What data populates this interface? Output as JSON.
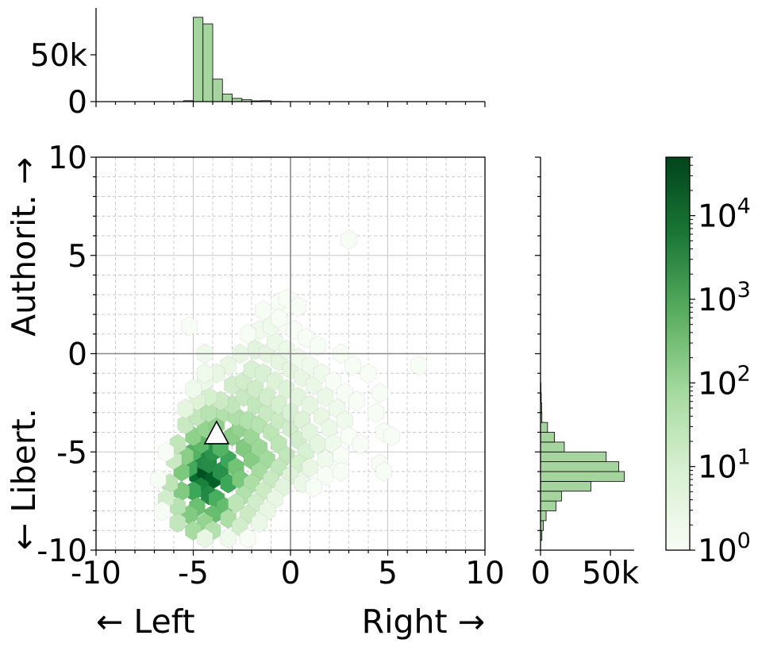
{
  "chart_data": [
    {
      "type": "heatmap",
      "subtype": "hexbin",
      "xlabel_left": "← Left",
      "xlabel_right": "Right →",
      "ylabel_bottom": "← Libert.",
      "ylabel_top": "Authorit. →",
      "xlim": [
        -10,
        10
      ],
      "ylim": [
        -10,
        10
      ],
      "x_ticks": [
        -10,
        -5,
        0,
        5,
        10
      ],
      "y_ticks": [
        -10,
        -5,
        0,
        5,
        10
      ],
      "x_tick_labels": [
        "-10",
        "-5",
        "0",
        "5",
        "10"
      ],
      "y_tick_labels": [
        "-10",
        "-5",
        "0",
        "5",
        "10"
      ],
      "grid": true,
      "color_scale": "log",
      "colormap": "Greens",
      "colorbar_min": 1,
      "colorbar_max": 50000,
      "colorbar_ticks": [
        1,
        10,
        100,
        1000,
        10000
      ],
      "colorbar_tick_labels": [
        {
          "base": "10",
          "exp": "0"
        },
        {
          "base": "10",
          "exp": "1"
        },
        {
          "base": "10",
          "exp": "2"
        },
        {
          "base": "10",
          "exp": "3"
        },
        {
          "base": "10",
          "exp": "4"
        }
      ],
      "marker": {
        "shape": "triangle",
        "x": -3.8,
        "y": -4.3
      },
      "bins": [
        [
          -4.8,
          -6.2,
          20000
        ],
        [
          -4.4,
          -6.0,
          40000
        ],
        [
          -4.0,
          -6.4,
          30000
        ],
        [
          -4.6,
          -5.4,
          9000
        ],
        [
          -4.2,
          -5.6,
          8000
        ],
        [
          -4.0,
          -5.0,
          6000
        ],
        [
          -4.6,
          -6.8,
          12000
        ],
        [
          -4.2,
          -7.2,
          9000
        ],
        [
          -3.6,
          -6.0,
          7000
        ],
        [
          -3.2,
          -5.4,
          3000
        ],
        [
          -3.2,
          -6.6,
          3000
        ],
        [
          -3.8,
          -7.4,
          2000
        ],
        [
          -5.0,
          -7.0,
          3000
        ],
        [
          -5.2,
          -5.8,
          2500
        ],
        [
          -5.0,
          -5.0,
          1500
        ],
        [
          -4.6,
          -4.6,
          1200
        ],
        [
          -3.6,
          -4.8,
          1500
        ],
        [
          -2.8,
          -5.8,
          700
        ],
        [
          -2.6,
          -6.4,
          500
        ],
        [
          -2.4,
          -4.8,
          400
        ],
        [
          -2.0,
          -5.4,
          350
        ],
        [
          -3.4,
          -7.8,
          1000
        ],
        [
          -4.0,
          -8.2,
          900
        ],
        [
          -4.8,
          -7.8,
          800
        ],
        [
          -5.2,
          -8.2,
          400
        ],
        [
          -5.6,
          -7.0,
          400
        ],
        [
          -5.6,
          -6.0,
          500
        ],
        [
          -5.4,
          -5.2,
          300
        ],
        [
          -5.0,
          -4.2,
          250
        ],
        [
          -4.4,
          -3.8,
          200
        ],
        [
          -3.8,
          -3.6,
          250
        ],
        [
          -3.0,
          -4.2,
          300
        ],
        [
          -2.6,
          -3.8,
          200
        ],
        [
          -2.0,
          -4.2,
          150
        ],
        [
          -1.6,
          -4.8,
          150
        ],
        [
          -1.2,
          -5.4,
          120
        ],
        [
          -1.6,
          -6.0,
          100
        ],
        [
          -2.0,
          -6.6,
          80
        ],
        [
          -2.4,
          -7.2,
          60
        ],
        [
          -2.8,
          -7.6,
          40
        ],
        [
          -3.2,
          -8.4,
          80
        ],
        [
          -4.4,
          -8.6,
          200
        ],
        [
          -5.0,
          -9.0,
          100
        ],
        [
          -4.0,
          -9.0,
          60
        ],
        [
          -5.8,
          -7.8,
          50
        ],
        [
          -6.2,
          -6.6,
          40
        ],
        [
          -6.0,
          -5.4,
          25
        ],
        [
          -5.8,
          -4.6,
          35
        ],
        [
          -5.4,
          -3.6,
          25
        ],
        [
          -4.8,
          -3.2,
          30
        ],
        [
          -4.2,
          -3.0,
          50
        ],
        [
          -3.4,
          -3.0,
          60
        ],
        [
          -2.8,
          -3.2,
          70
        ],
        [
          -2.2,
          -3.4,
          60
        ],
        [
          -1.6,
          -3.6,
          50
        ],
        [
          -1.0,
          -4.0,
          40
        ],
        [
          -0.6,
          -4.6,
          40
        ],
        [
          -0.2,
          -5.2,
          30
        ],
        [
          -0.6,
          -5.8,
          30
        ],
        [
          -1.0,
          -6.4,
          25
        ],
        [
          -1.4,
          -7.0,
          20
        ],
        [
          -1.8,
          -7.6,
          15
        ],
        [
          -2.2,
          -8.2,
          20
        ],
        [
          -2.6,
          -8.8,
          15
        ],
        [
          -5.8,
          -8.6,
          30
        ],
        [
          -6.4,
          -7.4,
          15
        ],
        [
          -3.0,
          -2.6,
          35
        ],
        [
          -2.4,
          -2.2,
          25
        ],
        [
          -1.8,
          -2.6,
          30
        ],
        [
          -1.2,
          -3.0,
          25
        ],
        [
          -0.6,
          -3.4,
          20
        ],
        [
          0.0,
          -3.8,
          15
        ],
        [
          0.4,
          -4.4,
          15
        ],
        [
          0.8,
          -5.0,
          10
        ],
        [
          0.4,
          -5.6,
          12
        ],
        [
          0.0,
          -6.2,
          8
        ],
        [
          -0.4,
          -6.8,
          6
        ],
        [
          -0.8,
          -7.4,
          4
        ],
        [
          -1.2,
          -8.0,
          4
        ],
        [
          -1.6,
          -8.6,
          3
        ],
        [
          -3.6,
          -2.4,
          20
        ],
        [
          -4.2,
          -2.2,
          12
        ],
        [
          -4.8,
          -2.4,
          8
        ],
        [
          -5.4,
          -2.8,
          5
        ],
        [
          -3.0,
          -1.6,
          15
        ],
        [
          -2.4,
          -1.4,
          15
        ],
        [
          -1.8,
          -1.8,
          18
        ],
        [
          -1.2,
          -2.2,
          15
        ],
        [
          -0.6,
          -2.6,
          12
        ],
        [
          0.0,
          -3.0,
          10
        ],
        [
          0.6,
          -3.4,
          8
        ],
        [
          1.0,
          -4.0,
          6
        ],
        [
          1.4,
          -4.6,
          5
        ],
        [
          1.0,
          -5.8,
          4
        ],
        [
          0.6,
          -6.6,
          3
        ],
        [
          -2.0,
          -0.8,
          10
        ],
        [
          -1.4,
          -1.0,
          10
        ],
        [
          -0.8,
          -1.4,
          8
        ],
        [
          -0.2,
          -1.8,
          8
        ],
        [
          0.4,
          -2.2,
          6
        ],
        [
          1.0,
          -2.6,
          5
        ],
        [
          1.6,
          -3.2,
          4
        ],
        [
          2.0,
          -3.8,
          3
        ],
        [
          2.2,
          -4.6,
          2
        ],
        [
          1.8,
          -5.4,
          2
        ],
        [
          -1.8,
          0.2,
          6
        ],
        [
          -1.2,
          0.0,
          5
        ],
        [
          -0.6,
          -0.4,
          5
        ],
        [
          0.0,
          -0.8,
          5
        ],
        [
          0.6,
          -1.2,
          4
        ],
        [
          1.2,
          -1.6,
          3
        ],
        [
          1.8,
          -2.2,
          3
        ],
        [
          2.4,
          -2.8,
          2
        ],
        [
          2.8,
          -3.4,
          2
        ],
        [
          3.0,
          -4.2,
          1
        ],
        [
          -2.6,
          0.0,
          4
        ],
        [
          -3.2,
          -0.6,
          4
        ],
        [
          -3.8,
          -1.0,
          4
        ],
        [
          -4.4,
          -1.4,
          3
        ],
        [
          -5.0,
          -1.8,
          2
        ],
        [
          -0.8,
          0.6,
          3
        ],
        [
          -0.2,
          0.2,
          3
        ],
        [
          0.4,
          -0.2,
          2
        ],
        [
          1.0,
          -0.6,
          2
        ],
        [
          1.6,
          -1.0,
          2
        ],
        [
          2.2,
          -1.4,
          1
        ],
        [
          2.8,
          -2.0,
          1
        ],
        [
          3.4,
          -2.4,
          1
        ],
        [
          -1.6,
          1.2,
          2
        ],
        [
          -1.0,
          1.4,
          2
        ],
        [
          -0.4,
          1.6,
          1
        ],
        [
          0.2,
          1.2,
          1
        ],
        [
          0.8,
          0.8,
          1
        ],
        [
          1.4,
          0.4,
          1
        ],
        [
          -1.4,
          2.2,
          1
        ],
        [
          -0.6,
          2.6,
          1
        ],
        [
          -0.2,
          2.8,
          1
        ],
        [
          0.4,
          2.4,
          1
        ],
        [
          -0.6,
          1.8,
          1
        ],
        [
          -2.2,
          1.0,
          1
        ],
        [
          -4.4,
          0.0,
          2
        ],
        [
          -4.4,
          -1.0,
          2
        ],
        [
          -6.4,
          -5.0,
          1
        ],
        [
          -6.8,
          -6.4,
          1
        ],
        [
          -6.6,
          -8.0,
          1
        ],
        [
          -4.4,
          -9.4,
          4
        ],
        [
          -3.2,
          -9.4,
          2
        ],
        [
          -2.2,
          -9.4,
          1
        ],
        [
          4.8,
          -4.0,
          1
        ],
        [
          4.4,
          -3.0,
          1
        ],
        [
          4.0,
          -1.0,
          1
        ],
        [
          3.2,
          -0.6,
          1
        ],
        [
          2.6,
          0.0,
          1
        ],
        [
          4.6,
          -2.0,
          1
        ],
        [
          6.6,
          -0.6,
          1
        ],
        [
          3.0,
          5.8,
          1
        ],
        [
          5.2,
          -4.2,
          1
        ],
        [
          4.6,
          -5.6,
          1
        ],
        [
          4.8,
          -6.0,
          1
        ],
        [
          3.6,
          -4.6,
          1
        ],
        [
          2.6,
          -5.2,
          1
        ],
        [
          1.8,
          -6.2,
          1
        ],
        [
          1.2,
          -6.8,
          1
        ],
        [
          2.6,
          -6.0,
          1
        ],
        [
          -5.2,
          1.4,
          1
        ]
      ]
    },
    {
      "type": "bar",
      "subtype": "histogram",
      "orientation": "vertical",
      "axis_shared": "x",
      "bin_width": 0.5,
      "bin_starts": [
        -5.5,
        -5.0,
        -4.5,
        -4.0,
        -3.5,
        -3.0,
        -2.5,
        -2.0,
        -1.5,
        -1.0
      ],
      "values": [
        1000,
        90000,
        83000,
        24000,
        8000,
        3500,
        2000,
        800,
        1000,
        200
      ],
      "ylim": [
        0,
        100000
      ],
      "y_ticks": [
        0,
        50000
      ],
      "y_tick_labels": [
        "0",
        "50k"
      ]
    },
    {
      "type": "bar",
      "subtype": "histogram",
      "orientation": "horizontal",
      "axis_shared": "y",
      "bin_width": 0.5,
      "bin_starts": [
        -9.5,
        -9.0,
        -8.5,
        -8.0,
        -7.5,
        -7.0,
        -6.5,
        -6.0,
        -5.5,
        -5.0,
        -4.5,
        -4.0,
        -3.5,
        -3.0,
        -2.5,
        -2.0
      ],
      "values": [
        1000,
        2000,
        4000,
        11000,
        15000,
        36000,
        60000,
        56000,
        47000,
        17000,
        10000,
        5000,
        1000,
        800,
        500,
        300
      ],
      "xlim": [
        0,
        67000
      ],
      "x_ticks": [
        0,
        50000
      ],
      "x_tick_labels": [
        "0",
        "50k"
      ]
    }
  ],
  "colors": {
    "hist_fill": "#a6d49e",
    "hist_edge": "#000000",
    "marker_fill": "#ffffff",
    "axis_line": "#888888",
    "grid": "#c8c8c8"
  }
}
